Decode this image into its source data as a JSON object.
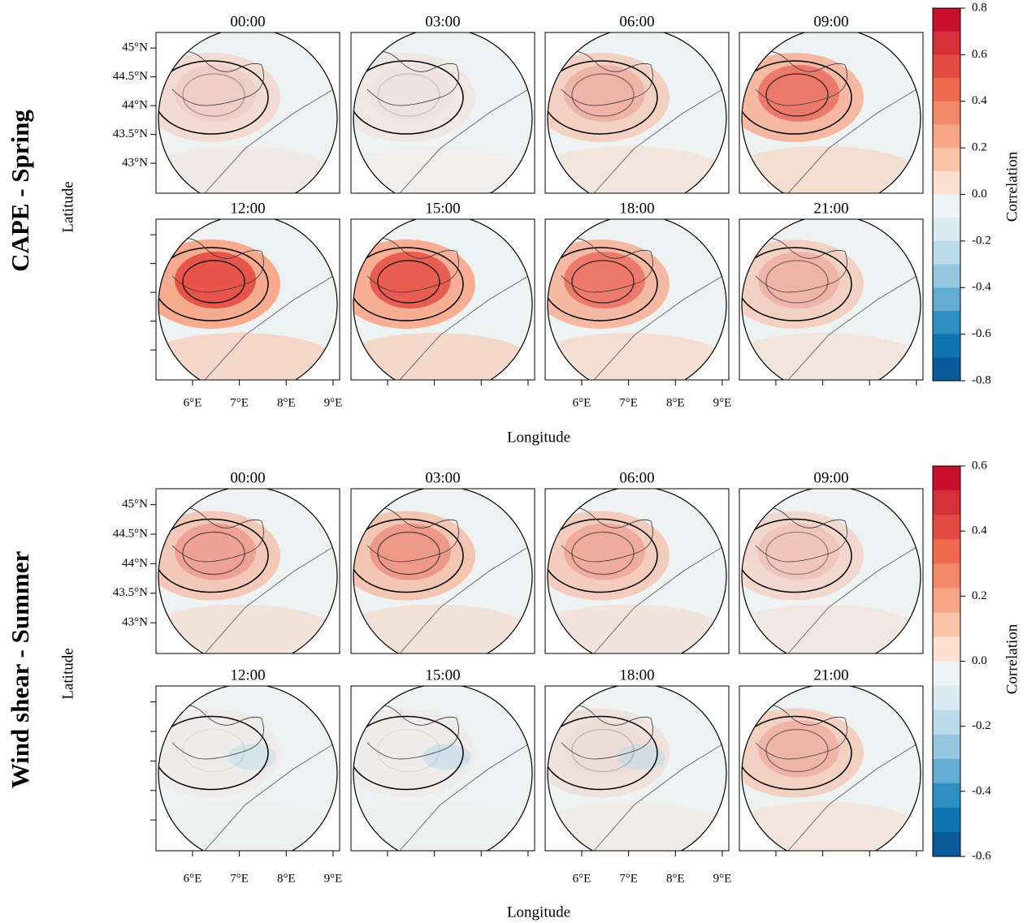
{
  "figures": [
    {
      "row_label": "CAPE - Spring",
      "y_label": "Latitude",
      "x_label": "Longitude",
      "panel_titles": [
        "00:00",
        "03:00",
        "06:00",
        "09:00",
        "12:00",
        "15:00",
        "18:00",
        "21:00"
      ],
      "ylim": [
        42.48,
        45.27
      ],
      "yticks": [
        {
          "value": 45,
          "label": "45°N"
        },
        {
          "value": 44.5,
          "label": "44.5°N"
        },
        {
          "value": 44,
          "label": "44°N"
        },
        {
          "value": 43.5,
          "label": "43.5°N"
        },
        {
          "value": 43,
          "label": "43°N"
        }
      ],
      "xlim": [
        5.22,
        9.14
      ],
      "xticks": [
        {
          "value": 6,
          "label": "6°E"
        },
        {
          "value": 7,
          "label": "7°E"
        },
        {
          "value": 8,
          "label": "8°E"
        },
        {
          "value": 9,
          "label": "9°E"
        }
      ],
      "colorbar": {
        "label": "Correlation",
        "lim": [
          -0.8,
          0.8
        ],
        "ticks": [
          0.8,
          0.6,
          0.4,
          0.2,
          {
            "value": 0,
            "label": "0.0"
          },
          -0.2,
          -0.4,
          -0.6,
          -0.8
        ]
      }
    },
    {
      "row_label": "Wind shear - Summer",
      "y_label": "Latitude",
      "x_label": "Longitude",
      "panel_titles": [
        "00:00",
        "03:00",
        "06:00",
        "09:00",
        "12:00",
        "15:00",
        "18:00",
        "21:00"
      ],
      "ylim": [
        42.48,
        45.27
      ],
      "yticks": [
        {
          "value": 45,
          "label": "45°N"
        },
        {
          "value": 44.5,
          "label": "44.5°N"
        },
        {
          "value": 44,
          "label": "44°N"
        },
        {
          "value": 43.5,
          "label": "43.5°N"
        },
        {
          "value": 43,
          "label": "43°N"
        }
      ],
      "xlim": [
        5.22,
        9.14
      ],
      "xticks": [
        {
          "value": 6,
          "label": "6°E"
        },
        {
          "value": 7,
          "label": "7°E"
        },
        {
          "value": 8,
          "label": "8°E"
        },
        {
          "value": 9,
          "label": "9°E"
        }
      ],
      "colorbar": {
        "label": "Correlation",
        "lim": [
          -0.6,
          0.6
        ],
        "ticks": [
          0.6,
          0.4,
          0.2,
          {
            "value": 0,
            "label": "0.0"
          },
          -0.2,
          -0.4,
          -0.6
        ]
      }
    }
  ],
  "colormap": [
    "#c8102e",
    "#d62f3a",
    "#e34a43",
    "#ef6a4f",
    "#f4896a",
    "#f7a688",
    "#fac3a8",
    "#fde0d0",
    "#eef2f4",
    "#dceaf2",
    "#bcdbea",
    "#95c8e0",
    "#63acd2",
    "#2e8fc2",
    "#0f74b2",
    "#085a9a"
  ]
}
